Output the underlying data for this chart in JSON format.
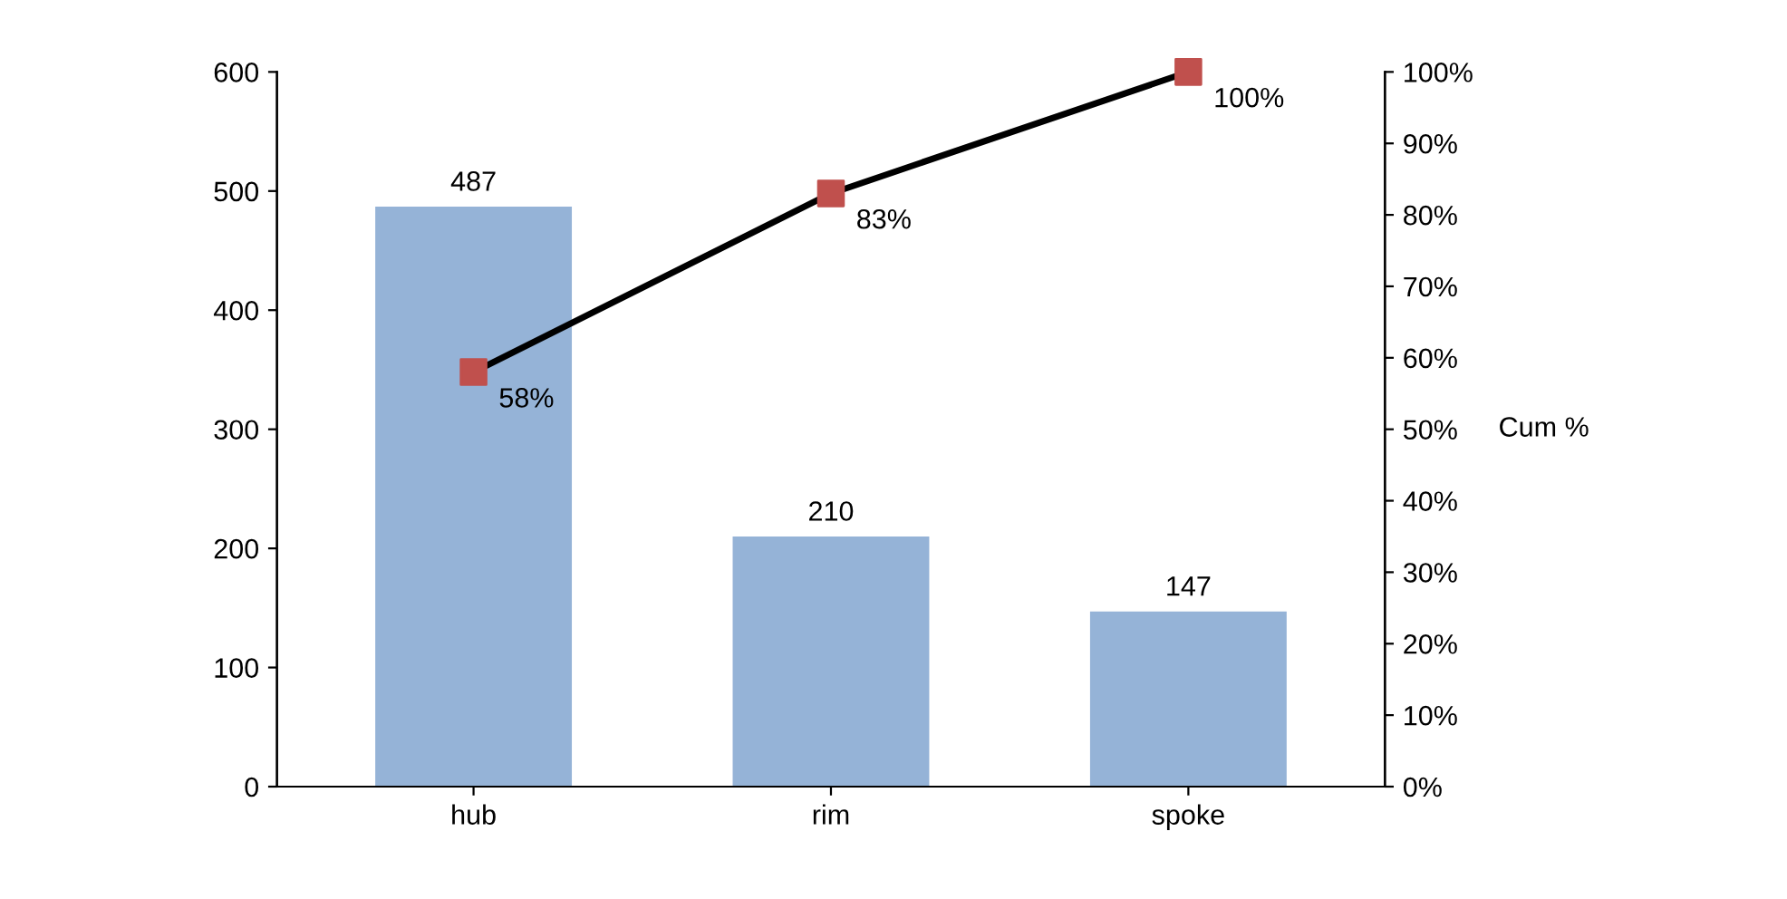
{
  "chart_data": {
    "type": "bar",
    "categories": [
      "hub",
      "rim",
      "spoke"
    ],
    "y2label": "Cum %",
    "series": [
      {
        "color": "#95b3d7",
        "values": [
          487,
          210,
          147
        ],
        "value_labels": [
          "487",
          "210",
          "147"
        ]
      },
      {
        "type": "line",
        "axis": "y2",
        "color": "#000000",
        "colors": [
          "#c0504d",
          "#c0504d",
          "#c0504d"
        ],
        "values": [
          58,
          83,
          100
        ],
        "value_labels": [
          "58%",
          "83%",
          "100%"
        ]
      }
    ],
    "marker": "square",
    "line_style": "solid",
    "grid": false,
    "legend": false,
    "ylim": [
      0,
      600
    ],
    "yticks": [
      0,
      100,
      200,
      300,
      400,
      500,
      600
    ],
    "y2lim": [
      0,
      100
    ],
    "y2ticks": [
      {
        "value": 0,
        "label": "0%"
      },
      {
        "value": 10,
        "label": "10%"
      },
      {
        "value": 20,
        "label": "20%"
      },
      {
        "value": 30,
        "label": "30%"
      },
      {
        "value": 40,
        "label": "40%"
      },
      {
        "value": 50,
        "label": "50%"
      },
      {
        "value": 60,
        "label": "60%"
      },
      {
        "value": 70,
        "label": "70%"
      },
      {
        "value": 80,
        "label": "80%"
      },
      {
        "value": 90,
        "label": "90%"
      },
      {
        "value": 100,
        "label": "100%"
      }
    ]
  }
}
